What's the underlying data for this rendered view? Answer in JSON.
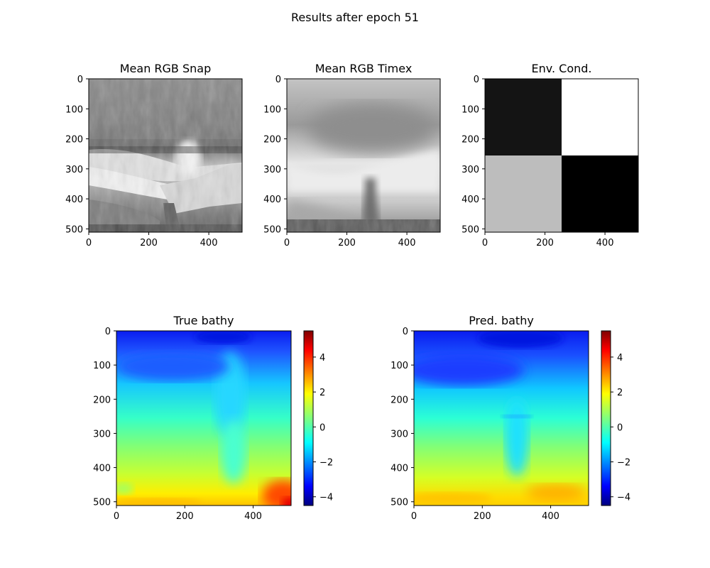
{
  "suptitle": "Results after epoch 51",
  "chart_data": [
    {
      "type": "heatmap",
      "title": "Mean RGB Snap",
      "colormap": "gray",
      "xlim": [
        0,
        511
      ],
      "ylim": [
        511,
        0
      ],
      "xticks": [
        "0",
        "200",
        "400"
      ],
      "yticks": [
        "0",
        "100",
        "200",
        "300",
        "400",
        "500"
      ]
    },
    {
      "type": "heatmap",
      "title": "Mean RGB Timex",
      "colormap": "gray",
      "xlim": [
        0,
        511
      ],
      "ylim": [
        511,
        0
      ],
      "xticks": [
        "0",
        "200",
        "400"
      ],
      "yticks": [
        "0",
        "100",
        "200",
        "300",
        "400",
        "500"
      ]
    },
    {
      "type": "heatmap",
      "title": "Env. Cond.",
      "colormap": "gray",
      "xlim": [
        0,
        511
      ],
      "ylim": [
        511,
        0
      ],
      "xticks": [
        "0",
        "200",
        "400"
      ],
      "yticks": [
        "0",
        "100",
        "200",
        "300",
        "400",
        "500"
      ],
      "grid_values": [
        [
          0.08,
          1.0
        ],
        [
          0.74,
          0.0
        ]
      ]
    },
    {
      "type": "heatmap",
      "title": "True bathy",
      "colormap": "jet",
      "xlim": [
        0,
        511
      ],
      "ylim": [
        511,
        0
      ],
      "xticks": [
        "0",
        "200",
        "400"
      ],
      "yticks": [
        "0",
        "100",
        "200",
        "300",
        "400",
        "500"
      ],
      "colorbar": {
        "range": [
          -4.5,
          5.5
        ],
        "ticks": [
          "4",
          "2",
          "0",
          "−2",
          "−4"
        ]
      }
    },
    {
      "type": "heatmap",
      "title": "Pred. bathy",
      "colormap": "jet",
      "xlim": [
        0,
        511
      ],
      "ylim": [
        511,
        0
      ],
      "xticks": [
        "0",
        "200",
        "400"
      ],
      "yticks": [
        "0",
        "100",
        "200",
        "300",
        "400",
        "500"
      ],
      "colorbar": {
        "range": [
          -4.5,
          5.5
        ],
        "ticks": [
          "4",
          "2",
          "0",
          "−2",
          "−4"
        ]
      }
    }
  ]
}
